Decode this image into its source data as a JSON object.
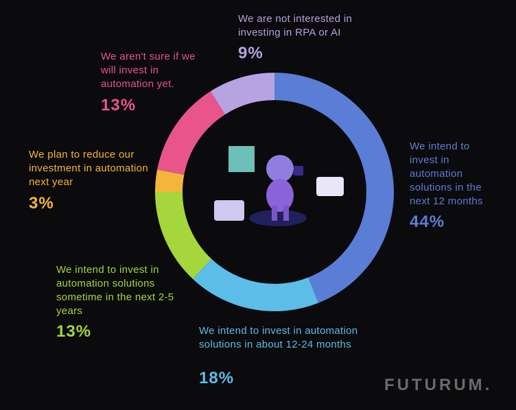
{
  "chart_data": {
    "type": "donut",
    "categories": [
      "We intend to invest in automation solutions in the next 12 months",
      "We intend to invest in automation solutions in about 12-24 months",
      "We intend to invest in automation solutions sometime in the next 2-5 years",
      "We plan to reduce our investment in automation next year",
      "We aren't sure if we will invest in automation yet.",
      "We are not interested in investing in RPA or AI"
    ],
    "values": [
      44,
      18,
      13,
      3,
      13,
      9
    ],
    "value_labels": [
      "44%",
      "18%",
      "13%",
      "3%",
      "13%",
      "9%"
    ],
    "colors": [
      "#5a7ed6",
      "#5cbde9",
      "#a5d63b",
      "#f4b63a",
      "#e9558b",
      "#b7a2e2"
    ]
  },
  "brand": "FUTURUM."
}
